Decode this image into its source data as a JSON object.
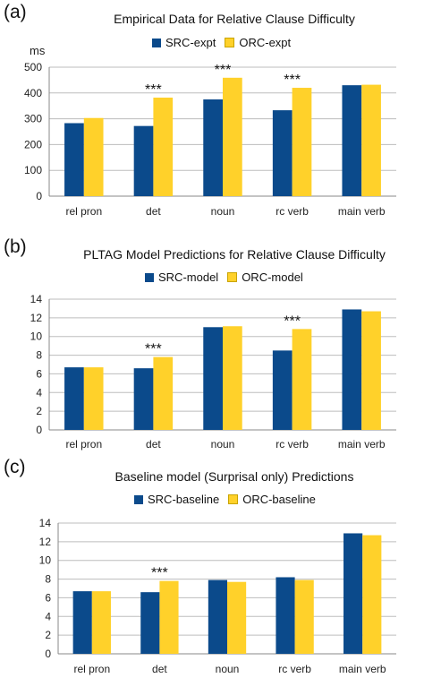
{
  "chart_data": [
    {
      "panel_label": "(a)",
      "type": "bar",
      "title": "Empirical Data for Relative Clause Difficulty",
      "unit_label": "ms",
      "categories": [
        "rel pron",
        "det",
        "noun",
        "rc verb",
        "main verb"
      ],
      "series": [
        {
          "name": "SRC-expt",
          "color": "#0b4a8b",
          "values": [
            283,
            272,
            375,
            333,
            430
          ]
        },
        {
          "name": "ORC-expt",
          "color": "#ffd12a",
          "values": [
            303,
            382,
            459,
            420,
            432
          ]
        }
      ],
      "significance": [
        "",
        "***",
        "***",
        "***",
        ""
      ],
      "ylim": [
        0,
        500
      ],
      "yticks": [
        0,
        100,
        200,
        300,
        400,
        500
      ],
      "legend_position": "top"
    },
    {
      "panel_label": "(b)",
      "type": "bar",
      "title": "PLTAG Model Predictions for Relative Clause Difficulty",
      "unit_label": "",
      "categories": [
        "rel pron",
        "det",
        "noun",
        "rc verb",
        "main verb"
      ],
      "series": [
        {
          "name": "SRC-model",
          "color": "#0b4a8b",
          "values": [
            6.7,
            6.6,
            11.0,
            8.5,
            12.9
          ]
        },
        {
          "name": "ORC-model",
          "color": "#ffd12a",
          "values": [
            6.7,
            7.8,
            11.1,
            10.8,
            12.7
          ]
        }
      ],
      "significance": [
        "",
        "***",
        "",
        "***",
        ""
      ],
      "ylim": [
        0,
        14
      ],
      "yticks": [
        0,
        2,
        4,
        6,
        8,
        10,
        12,
        14
      ],
      "legend_position": "top"
    },
    {
      "panel_label": "(c)",
      "type": "bar",
      "title": "Baseline model (Surprisal only) Predictions",
      "unit_label": "",
      "categories": [
        "rel pron",
        "det",
        "noun",
        "rc verb",
        "main verb"
      ],
      "series": [
        {
          "name": "SRC-baseline",
          "color": "#0b4a8b",
          "values": [
            6.7,
            6.6,
            7.9,
            8.2,
            12.9
          ]
        },
        {
          "name": "ORC-baseline",
          "color": "#ffd12a",
          "values": [
            6.7,
            7.8,
            7.7,
            7.9,
            12.7
          ]
        }
      ],
      "significance": [
        "",
        "***",
        "",
        "",
        ""
      ],
      "ylim": [
        0,
        14
      ],
      "yticks": [
        0,
        2,
        4,
        6,
        8,
        10,
        12,
        14
      ],
      "legend_position": "top"
    }
  ]
}
